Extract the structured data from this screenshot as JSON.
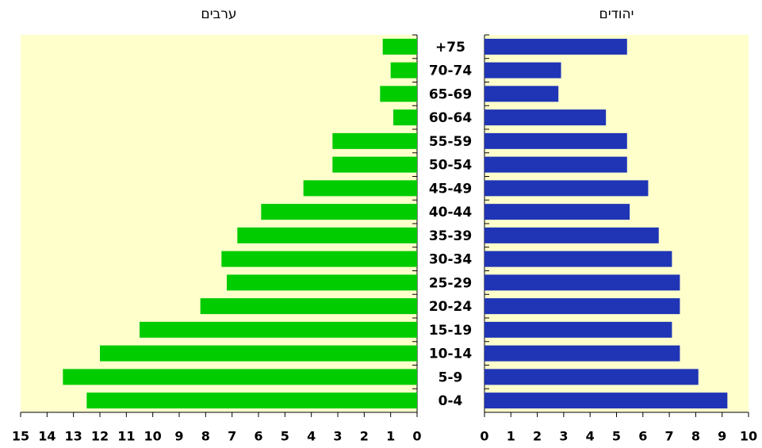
{
  "chart_data": {
    "type": "bar",
    "categories": [
      "0-4",
      "5-9",
      "10-14",
      "15-19",
      "20-24",
      "25-29",
      "30-34",
      "35-39",
      "40-44",
      "45-49",
      "50-54",
      "55-59",
      "60-64",
      "65-69",
      "70-74",
      "75+"
    ],
    "series": [
      {
        "name": "ערבים",
        "color": "#00cc00",
        "values": [
          12.5,
          13.4,
          12.0,
          10.5,
          8.2,
          7.2,
          7.4,
          6.8,
          5.9,
          4.3,
          3.2,
          3.2,
          0.9,
          1.4,
          1.0,
          1.3
        ],
        "xlim": [
          0,
          15
        ],
        "xticks": [
          0,
          1,
          2,
          3,
          4,
          5,
          6,
          7,
          8,
          9,
          10,
          11,
          12,
          13,
          14,
          15
        ],
        "reversed": true
      },
      {
        "name": "יהודים",
        "color": "#1f35b5",
        "values": [
          9.2,
          8.1,
          7.4,
          7.1,
          7.4,
          7.4,
          7.1,
          6.6,
          5.5,
          6.2,
          5.4,
          5.4,
          4.6,
          2.8,
          2.9,
          5.4
        ],
        "xlim": [
          0,
          10
        ],
        "xticks": [
          0,
          1,
          2,
          3,
          4,
          5,
          6,
          7,
          8,
          9,
          10
        ],
        "reversed": false
      }
    ]
  }
}
